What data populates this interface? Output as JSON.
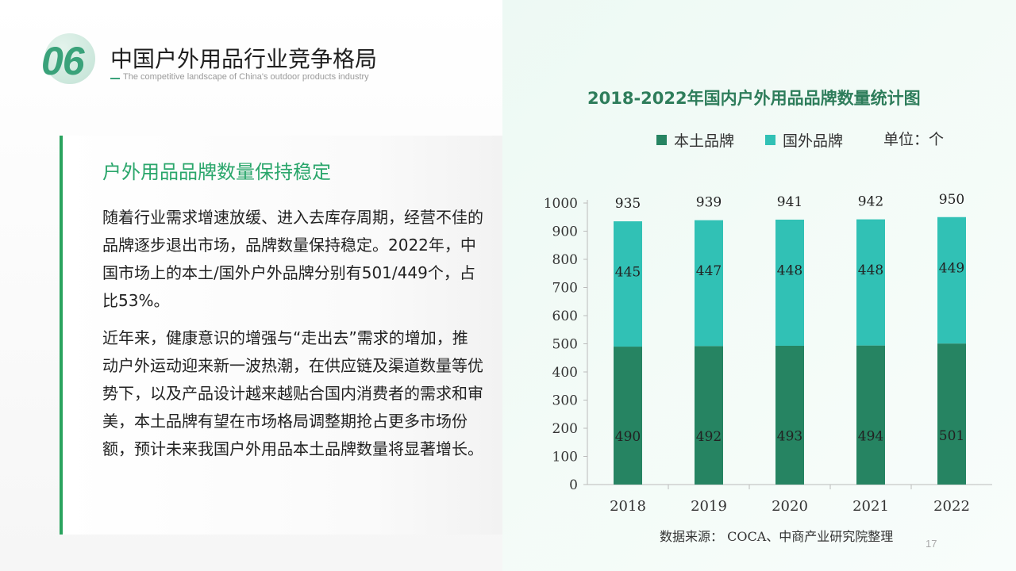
{
  "header": {
    "number": "06",
    "title": "中国户外用品行业竞争格局",
    "subtitle": "The competitive landscape of China's outdoor products industry"
  },
  "card": {
    "heading": "户外用品品牌数量保持稳定",
    "paragraph1": "随着行业需求增速放缓、进入去库存周期，经营不佳的品牌逐步退出市场，品牌数量保持稳定。2022年，中国市场上的本土/国外户外品牌分别有501/449个，占比53%。",
    "paragraph2": "近年来，健康意识的增强与“走出去”需求的增加，推动户外运动迎来新一波热潮，在供应链及渠道数量等优势下，以及产品设计越来越贴合国内消费者的需求和审美，本土品牌有望在市场格局调整期抢占更多市场份额，预计未来我国户外用品本土品牌数量将显著增长。"
  },
  "chart_data": {
    "type": "bar",
    "stacked": true,
    "title": "2018-2022年国内户外用品品牌数量统计图",
    "unit": "单位：个",
    "categories": [
      "2018",
      "2019",
      "2020",
      "2021",
      "2022"
    ],
    "series": [
      {
        "name": "本土品牌",
        "values": [
          490,
          492,
          493,
          494,
          501
        ],
        "color": "#268462"
      },
      {
        "name": "国外品牌",
        "values": [
          445,
          447,
          448,
          448,
          449
        ],
        "color": "#31c1b5"
      }
    ],
    "totals": [
      935,
      939,
      941,
      942,
      950
    ],
    "ylim": [
      0,
      1000
    ],
    "yticks": [
      0,
      100,
      200,
      300,
      400,
      500,
      600,
      700,
      800,
      900,
      1000
    ],
    "legend_position": "top-right",
    "grid": false
  },
  "source": "数据来源：  COCA、中商产业研究院整理",
  "page_number": "17"
}
